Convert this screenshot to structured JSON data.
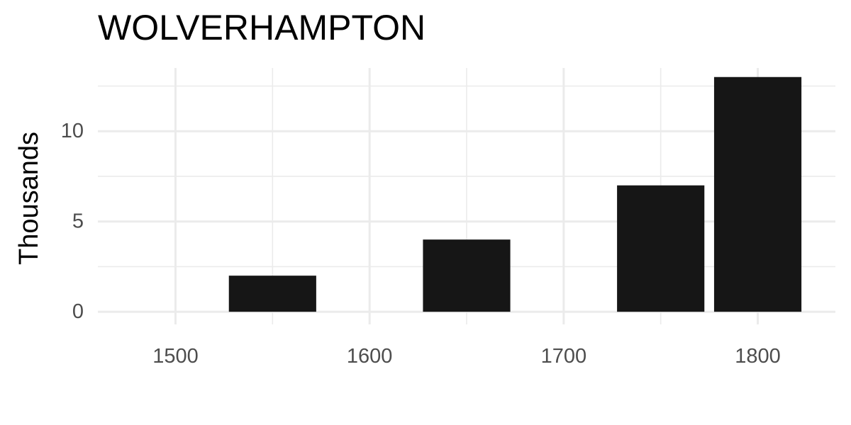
{
  "chart_data": {
    "type": "bar",
    "title": "WOLVERHAMPTON",
    "xlabel": "",
    "ylabel": "Thousands",
    "x": [
      1550,
      1650,
      1750,
      1800
    ],
    "values": [
      2,
      4,
      7,
      13
    ],
    "bar_width": 45,
    "xlim": [
      1460,
      1840
    ],
    "ylim": [
      -0.7,
      13.5
    ],
    "x_ticks": [
      1500,
      1600,
      1700,
      1800
    ],
    "x_tick_labels": [
      "1500",
      "1600",
      "1700",
      "1800"
    ],
    "y_ticks": [
      0,
      5,
      10
    ],
    "y_tick_labels": [
      "0",
      "5",
      "10"
    ],
    "grid": true,
    "colors": {
      "bar": "#161616",
      "grid": "#ebebeb",
      "background": "#ffffff"
    }
  }
}
